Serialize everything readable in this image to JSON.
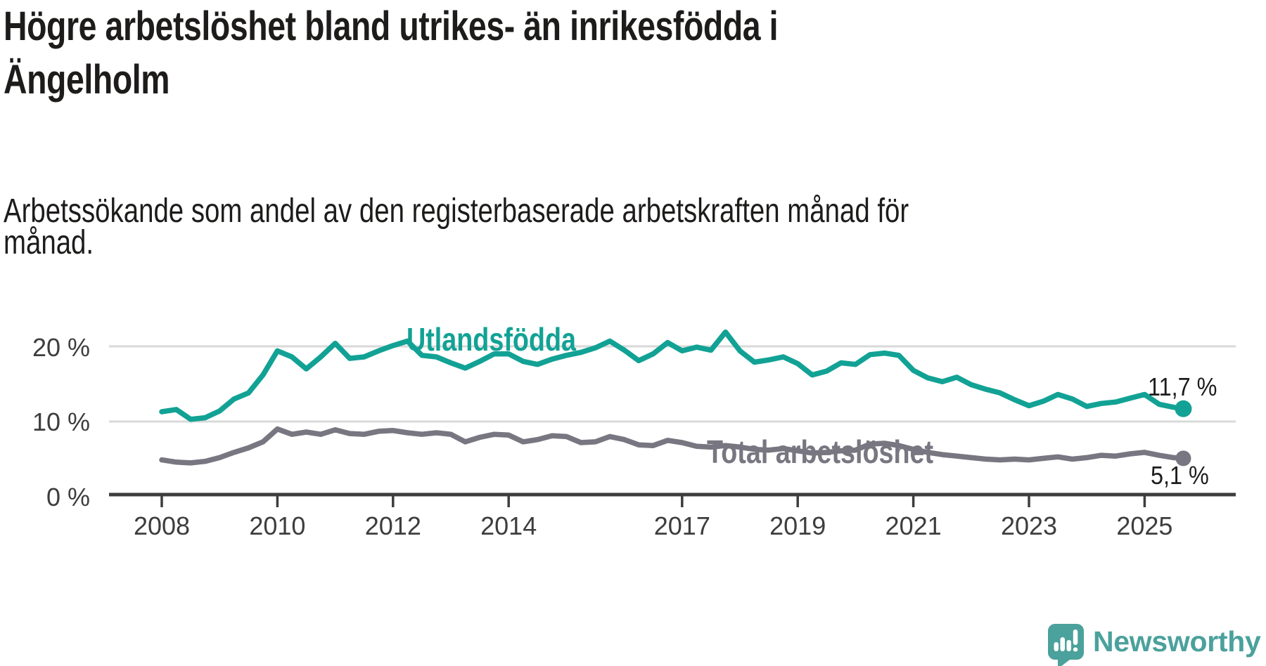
{
  "title": {
    "lines": [
      "Högre arbetslöshet bland utrikes- än inrikesfödda i",
      "Ängelholm"
    ]
  },
  "subtitle": {
    "lines": [
      "Arbetssökande som andel av den registerbaserade arbetskraften månad för",
      "månad."
    ]
  },
  "branding": {
    "wordmark": "Newsworthy",
    "icon": "speech-bubble-bar-chart",
    "color": "#4ba19c"
  },
  "chart_data": {
    "type": "line",
    "title": "Högre arbetslöshet bland utrikes- än inrikesfödda i Ängelholm",
    "subtitle": "Arbetssökande som andel av den registerbaserade arbetskraften månad för månad.",
    "unit": "%",
    "grid": "horizontal",
    "x_axis": {
      "ticks": [
        2008,
        2010,
        2012,
        2014,
        2017,
        2019,
        2021,
        2023,
        2025
      ],
      "range": [
        2007.1,
        2026.6
      ]
    },
    "y_axis": {
      "ticks": [
        {
          "value": 20,
          "label": "20 %"
        },
        {
          "value": 10,
          "label": "10 %"
        },
        {
          "value": 0,
          "label": "0 %"
        }
      ],
      "gridlines": [
        20,
        10
      ],
      "range": [
        0,
        23
      ]
    },
    "x": [
      2008.0,
      2008.25,
      2008.5,
      2008.75,
      2009.0,
      2009.25,
      2009.5,
      2009.75,
      2010.0,
      2010.25,
      2010.5,
      2010.75,
      2011.0,
      2011.25,
      2011.5,
      2011.75,
      2012.0,
      2012.25,
      2012.5,
      2012.75,
      2013.0,
      2013.25,
      2013.5,
      2013.75,
      2014.0,
      2014.25,
      2014.5,
      2014.75,
      2015.0,
      2015.25,
      2015.5,
      2015.75,
      2016.0,
      2016.25,
      2016.5,
      2016.75,
      2017.0,
      2017.25,
      2017.5,
      2017.75,
      2018.0,
      2018.25,
      2018.5,
      2018.75,
      2019.0,
      2019.25,
      2019.5,
      2019.75,
      2020.0,
      2020.25,
      2020.5,
      2020.75,
      2021.0,
      2021.25,
      2021.5,
      2021.75,
      2022.0,
      2022.25,
      2022.5,
      2022.75,
      2023.0,
      2023.25,
      2023.5,
      2023.75,
      2024.0,
      2024.25,
      2024.5,
      2024.75,
      2025.0,
      2025.25,
      2025.5,
      2025.67
    ],
    "series": [
      {
        "name": "Utlandsfödda",
        "color": "#12a295",
        "end_label": "11,7 %",
        "end_value": 11.7,
        "values": [
          11.3,
          11.6,
          10.3,
          10.5,
          11.4,
          13.0,
          13.8,
          16.2,
          19.4,
          18.6,
          17.0,
          18.6,
          20.4,
          18.4,
          18.6,
          19.4,
          20.1,
          20.7,
          18.8,
          18.6,
          17.8,
          17.1,
          18.0,
          19.0,
          19.0,
          18.0,
          17.6,
          18.3,
          18.8,
          19.2,
          19.8,
          20.7,
          19.5,
          18.1,
          19.0,
          20.5,
          19.4,
          19.9,
          19.5,
          21.9,
          19.4,
          17.9,
          18.2,
          18.6,
          17.7,
          16.2,
          16.7,
          17.8,
          17.6,
          18.9,
          19.1,
          18.8,
          16.8,
          15.8,
          15.3,
          15.9,
          14.9,
          14.3,
          13.8,
          12.9,
          12.1,
          12.7,
          13.6,
          13.0,
          12.0,
          12.4,
          12.6,
          13.1,
          13.6,
          12.3,
          11.9,
          11.7
        ]
      },
      {
        "name": "Total arbetslöshet",
        "color": "#787680",
        "end_label": "5,1 %",
        "end_value": 5.1,
        "values": [
          4.9,
          4.6,
          4.5,
          4.7,
          5.2,
          5.9,
          6.5,
          7.3,
          9.0,
          8.3,
          8.6,
          8.3,
          8.9,
          8.4,
          8.3,
          8.7,
          8.8,
          8.5,
          8.3,
          8.5,
          8.3,
          7.3,
          7.9,
          8.3,
          8.2,
          7.3,
          7.6,
          8.1,
          8.0,
          7.2,
          7.3,
          8.0,
          7.6,
          6.9,
          6.8,
          7.5,
          7.2,
          6.7,
          6.6,
          6.8,
          6.6,
          6.3,
          6.2,
          6.4,
          6.1,
          5.8,
          5.9,
          6.1,
          6.2,
          7.0,
          7.1,
          6.8,
          6.3,
          5.9,
          5.6,
          5.4,
          5.2,
          5.0,
          4.9,
          5.0,
          4.9,
          5.1,
          5.3,
          5.0,
          5.2,
          5.5,
          5.4,
          5.7,
          5.9,
          5.5,
          5.2,
          5.1
        ]
      }
    ]
  }
}
